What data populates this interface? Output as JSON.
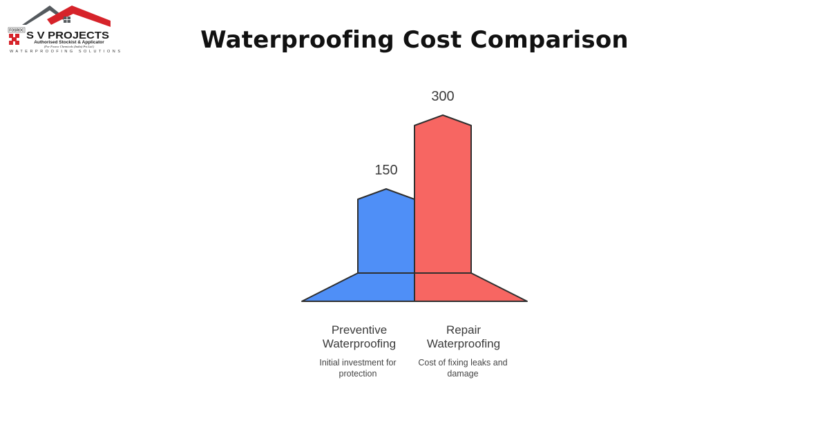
{
  "logo": {
    "name": "S V PROJECTS",
    "tagline": "Authorised Stockist & Applicator",
    "subline": "(For Fosroc Chemicals (India) Pvt.Ltd.)",
    "bottom": "WATERPROOFING SOLUTIONS",
    "badge": "FOSROC"
  },
  "chart_data": {
    "type": "bar",
    "title": "Waterproofing Cost Comparison",
    "categories": [
      "Preventive Waterproofing",
      "Repair Waterproofing"
    ],
    "descriptions": [
      "Initial investment for protection",
      "Cost of fixing leaks and damage"
    ],
    "values": [
      150,
      300
    ],
    "value_labels": [
      "150",
      "300"
    ],
    "ylim": [
      0,
      300
    ],
    "grid": false,
    "colors": [
      "#4f8ff7",
      "#f76662"
    ],
    "outline_color": "#2f2f2f"
  },
  "labels": {
    "cat0_line1": "Preventive",
    "cat0_line2": "Waterproofing",
    "cat0_desc_line1": "Initial investment for",
    "cat0_desc_line2": "protection",
    "cat1_line1": "Repair",
    "cat1_line2": "Waterproofing",
    "cat1_desc_line1": "Cost of fixing leaks and",
    "cat1_desc_line2": "damage"
  }
}
